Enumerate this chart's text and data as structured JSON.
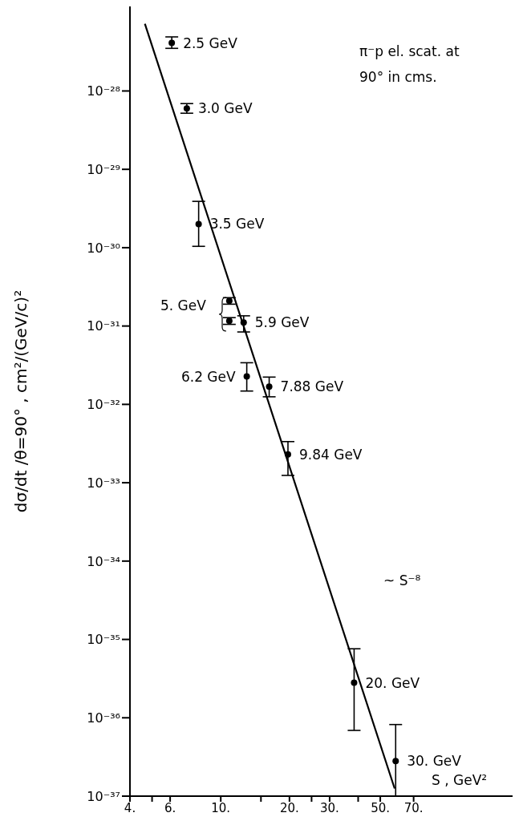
{
  "chart_data": {
    "type": "scatter",
    "xlabel": "S , GeV²",
    "ylabel": "dσ/dt /θ=90° , cm²/(GeV/c)²",
    "log": "xy",
    "marker": "circle",
    "xlim": [
      4,
      190
    ],
    "xticks": [
      {
        "value": 4,
        "label": "4."
      },
      {
        "value": 5,
        "label": null
      },
      {
        "value": 6,
        "label": "6."
      },
      {
        "value": 10,
        "label": "10."
      },
      {
        "value": 15,
        "label": null
      },
      {
        "value": 20,
        "label": "20."
      },
      {
        "value": 25,
        "label": null
      },
      {
        "value": 30,
        "label": "30."
      },
      {
        "value": 40,
        "label": null
      },
      {
        "value": 50,
        "label": "50."
      },
      {
        "value": 70,
        "label": "70."
      }
    ],
    "ylim": [
      1e-37,
      1.2e-27
    ],
    "yticks": [
      {
        "value": 1e-37,
        "label": "10⁻³⁷"
      },
      {
        "value": 1e-36,
        "label": "10⁻³⁶"
      },
      {
        "value": 1e-35,
        "label": "10⁻³⁵"
      },
      {
        "value": 1e-34,
        "label": "10⁻³⁴"
      },
      {
        "value": 1e-33,
        "label": "10⁻³³"
      },
      {
        "value": 1e-32,
        "label": "10⁻³²"
      },
      {
        "value": 1e-31,
        "label": "10⁻³¹"
      },
      {
        "value": 1e-30,
        "label": "10⁻³⁰"
      },
      {
        "value": 1e-29,
        "label": "10⁻²⁹"
      },
      {
        "value": 1e-28,
        "label": "10⁻²⁸"
      }
    ],
    "series": [
      {
        "color": "#000000",
        "x": [
          6.1,
          7.1,
          8.0,
          10.9,
          10.9,
          12.6,
          13.0,
          16.3,
          19.7,
          38.4,
          58.4
        ],
        "values": [
          4.1e-28,
          6e-29,
          2e-30,
          2.1e-31,
          1.16e-31,
          1.11e-31,
          2.27e-32,
          1.68e-32,
          2.3e-33,
          2.8e-36,
          2.8e-37
        ],
        "errors": [
          [
            3.5e-28,
            4.9e-28
          ],
          [
            5.2e-29,
            6.9e-29
          ],
          [
            1.04e-30,
            3.9e-30
          ],
          [
            1.9e-31,
            2.3e-31
          ],
          [
            1.05e-31,
            1.28e-31
          ],
          [
            8.4e-32,
            1.35e-31
          ],
          [
            1.48e-32,
            3.4e-32
          ],
          [
            1.25e-32,
            2.23e-32
          ],
          [
            1.24e-33,
            3.35e-33
          ],
          [
            6.9e-37,
            7.6e-36
          ],
          [
            1e-37,
            8.2e-37
          ]
        ]
      },
      {
        "type": "line",
        "marker": "none",
        "color": "#000000",
        "x": [
          4.65,
          57.8
        ],
        "values": [
          7.2e-28,
          1.25e-37
        ]
      }
    ],
    "annotations": [
      "π⁻p el. scat. at 90° in cms.",
      "~ S⁻⁸",
      {
        "text": "2.5 GeV",
        "x": 6.1,
        "y": 4.1e-28
      },
      {
        "text": "3.0 GeV",
        "x": 7.1,
        "y": 6e-29
      },
      {
        "text": "3.5 GeV",
        "x": 8.0,
        "y": 2e-30
      },
      "5. GeV",
      {
        "text": "5.9 GeV",
        "x": 12.6,
        "y": 1.11e-31
      },
      {
        "text": "6.2 GeV",
        "x": 13.0,
        "y": 2.27e-32
      },
      {
        "text": "7.88 GeV",
        "x": 16.3,
        "y": 1.68e-32
      },
      {
        "text": "9.84 GeV",
        "x": 19.7,
        "y": 2.3e-33
      },
      {
        "text": "20. GeV",
        "x": 38.4,
        "y": 2.8e-36
      },
      {
        "text": "30. GeV",
        "x": 58.4,
        "y": 2.8e-37
      }
    ]
  }
}
